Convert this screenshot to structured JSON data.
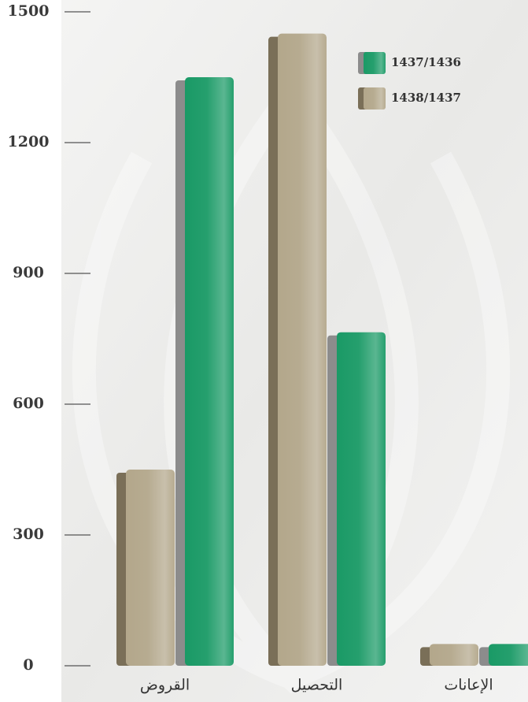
{
  "chart_data": {
    "type": "bar",
    "categories": [
      "القروض",
      "التحصيل",
      "الإعانات"
    ],
    "series": [
      {
        "name": "1438/1437",
        "color": "#b3a78b",
        "values": [
          450,
          1450,
          50
        ]
      },
      {
        "name": "1437/1436",
        "color": "#1a9a66",
        "values": [
          1350,
          765,
          50
        ]
      }
    ],
    "ylim": [
      0,
      1500
    ],
    "yticks": [
      0,
      300,
      600,
      900,
      1200,
      1500
    ],
    "legend": "top-right"
  }
}
